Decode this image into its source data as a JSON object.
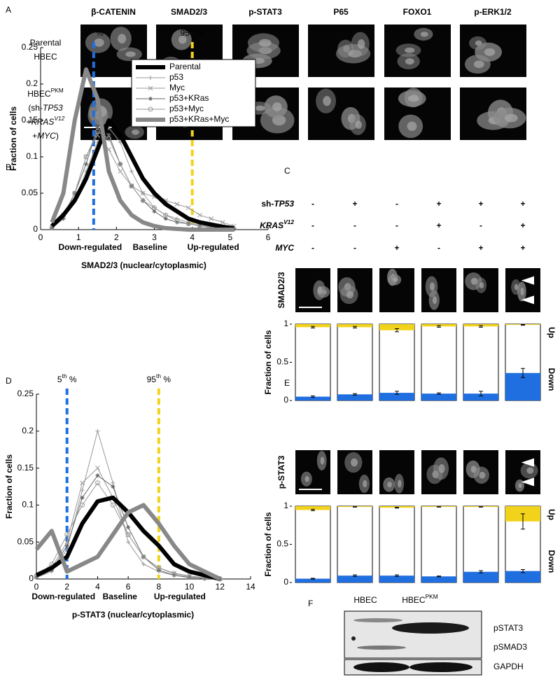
{
  "panel_labels": [
    "A",
    "B",
    "C",
    "D",
    "E",
    "F"
  ],
  "panel_a": {
    "columns": [
      "β-CATENIN",
      "SMAD2/3",
      "p-STAT3",
      "P65",
      "FOXO1",
      "p-ERK1/2"
    ],
    "row_labels": [
      [
        [
          {
            "t": "Parental"
          }
        ],
        [
          {
            "t": "HBEC"
          }
        ]
      ],
      [
        [
          {
            "t": "HBEC"
          },
          {
            "t": "PKM",
            "s": "sup"
          }
        ],
        [
          {
            "t": "(sh-"
          },
          {
            "t": "TP53",
            "s": "i"
          }
        ],
        [
          {
            "t": "+"
          },
          {
            "t": "KRAS",
            "s": "i"
          },
          {
            "t": "V12",
            "s": "isup"
          }
        ],
        [
          {
            "t": "+"
          },
          {
            "t": "MYC",
            "s": "i"
          },
          {
            "t": ")"
          }
        ]
      ]
    ]
  },
  "chart_data": [
    {
      "type": "line",
      "xlabel": "SMAD2/3 (nuclear/cytoplasmic)",
      "ylabel": "Fraction of cells",
      "xlim": [
        0,
        6
      ],
      "xticks": [
        0,
        1,
        2,
        3,
        4,
        5,
        6
      ],
      "ylim": [
        0,
        0.25
      ],
      "yticks": [
        0,
        0.05,
        0.1,
        0.15,
        0.2,
        0.25
      ],
      "legend": "upper right",
      "x": [
        0.3,
        0.6,
        0.9,
        1.2,
        1.5,
        1.8,
        2.1,
        2.4,
        2.7,
        3.0,
        3.3,
        3.6,
        3.9,
        4.2,
        4.5,
        4.8,
        5.1
      ],
      "series": [
        {
          "name": "Parental",
          "color": "#000000",
          "style": "thick",
          "values": [
            0.005,
            0.02,
            0.04,
            0.07,
            0.11,
            0.15,
            0.13,
            0.1,
            0.07,
            0.05,
            0.035,
            0.025,
            0.015,
            0.01,
            0.007,
            0.004,
            0.002
          ]
        },
        {
          "name": "p53",
          "color": "#999999",
          "style": "thin",
          "marker": "+",
          "values": [
            0.003,
            0.015,
            0.04,
            0.08,
            0.12,
            0.14,
            0.12,
            0.08,
            0.05,
            0.03,
            0.02,
            0.015,
            0.01,
            0.006,
            0.004,
            0.002,
            0.001
          ]
        },
        {
          "name": "Myc",
          "color": "#999999",
          "style": "thin",
          "marker": "x",
          "values": [
            0.004,
            0.02,
            0.05,
            0.1,
            0.13,
            0.11,
            0.08,
            0.06,
            0.05,
            0.045,
            0.04,
            0.035,
            0.03,
            0.02,
            0.015,
            0.01,
            0.005
          ]
        },
        {
          "name": "p53+KRas",
          "color": "#666666",
          "style": "thin",
          "marker": "*",
          "values": [
            0.002,
            0.015,
            0.05,
            0.09,
            0.14,
            0.13,
            0.09,
            0.06,
            0.04,
            0.025,
            0.015,
            0.01,
            0.008,
            0.005,
            0.003,
            0.002,
            0.001
          ]
        },
        {
          "name": "p53+Myc",
          "color": "#999999",
          "style": "thin",
          "marker": "o",
          "values": [
            0.003,
            0.02,
            0.05,
            0.1,
            0.135,
            0.125,
            0.09,
            0.06,
            0.04,
            0.03,
            0.02,
            0.012,
            0.008,
            0.005,
            0.003,
            0.002,
            0.001
          ]
        },
        {
          "name": "p53+KRas+Myc",
          "color": "#888888",
          "style": "thick",
          "values": [
            0.01,
            0.05,
            0.15,
            0.22,
            0.18,
            0.08,
            0.04,
            0.02,
            0.01,
            0.005,
            0.002,
            0.001,
            0,
            0,
            0,
            0,
            0
          ]
        }
      ],
      "thresholds": [
        {
          "value": 1.4,
          "color": "#1f6fe0",
          "label": [
            {
              "t": "5"
            },
            {
              "t": "th",
              "s": "sup"
            },
            {
              "t": " %"
            }
          ]
        },
        {
          "value": 4,
          "color": "#f2d31b",
          "label": [
            {
              "t": "95"
            },
            {
              "t": "th",
              "s": "sup"
            },
            {
              "t": " %"
            }
          ]
        }
      ],
      "regions": [
        {
          "label": "Down-regulated",
          "color": "#1f6fe0"
        },
        {
          "label": "Baseline",
          "color": "#000000"
        },
        {
          "label": "Up-regulated",
          "color": "#f2d31b"
        }
      ]
    },
    {
      "type": "stacked_bar",
      "ylabel": "Fraction of cells",
      "image_label": "SMAD2/3",
      "ylim": [
        0,
        1
      ],
      "yticks": [
        0,
        0.5,
        1
      ],
      "conditions": {
        "rows": [
          [
            {
              "t": "sh-"
            },
            {
              "t": "TP53",
              "s": "i"
            }
          ],
          [
            {
              "t": "KRAS",
              "s": "i"
            },
            {
              "t": "V12",
              "s": "isup"
            }
          ],
          [
            {
              "t": "MYC",
              "s": "i"
            }
          ]
        ],
        "signs": [
          [
            "-",
            "+",
            "-",
            "+",
            "+",
            "+"
          ],
          [
            "-",
            "-",
            "-",
            "+",
            "-",
            "+"
          ],
          [
            "-",
            "-",
            "+",
            "-",
            "+",
            "+"
          ]
        ]
      },
      "series": [
        {
          "name": "Down",
          "color": "#1f6fe0",
          "values": [
            0.05,
            0.08,
            0.1,
            0.09,
            0.09,
            0.36
          ],
          "errors": [
            0.01,
            0.01,
            0.02,
            0.01,
            0.03,
            0.06
          ]
        },
        {
          "name": "Up",
          "color": "#f2d31b",
          "stack": "top",
          "values": [
            0.04,
            0.04,
            0.08,
            0.03,
            0.03,
            0.01
          ],
          "errors": [
            0.01,
            0.01,
            0.02,
            0.01,
            0.01,
            0.005
          ]
        }
      ]
    },
    {
      "type": "line",
      "xlabel": "p-STAT3 (nuclear/cytoplasmic)",
      "ylabel": "Fraction of cells",
      "xlim": [
        0,
        14
      ],
      "xticks": [
        0,
        2,
        4,
        6,
        8,
        10,
        12,
        14
      ],
      "ylim": [
        0,
        0.25
      ],
      "yticks": [
        0,
        0.05,
        0.1,
        0.15,
        0.2,
        0.25
      ],
      "x": [
        0,
        1,
        2,
        3,
        4,
        5,
        6,
        7,
        8,
        9,
        10,
        11,
        12
      ],
      "series": [
        {
          "color": "#000000",
          "style": "thick",
          "values": [
            0.005,
            0.015,
            0.03,
            0.075,
            0.105,
            0.11,
            0.09,
            0.065,
            0.045,
            0.02,
            0.01,
            0.005,
            0
          ]
        },
        {
          "color": "#999999",
          "style": "thin",
          "marker": "+",
          "values": [
            0.002,
            0.01,
            0.04,
            0.12,
            0.2,
            0.13,
            0.05,
            0.02,
            0.01,
            0.005,
            0.002,
            0.001,
            0
          ]
        },
        {
          "color": "#999999",
          "style": "thin",
          "marker": "x",
          "values": [
            0.003,
            0.015,
            0.05,
            0.13,
            0.15,
            0.11,
            0.06,
            0.03,
            0.015,
            0.008,
            0.004,
            0.002,
            0
          ]
        },
        {
          "color": "#666666",
          "style": "thin",
          "marker": "*",
          "values": [
            0.002,
            0.012,
            0.045,
            0.11,
            0.14,
            0.125,
            0.07,
            0.03,
            0.012,
            0.005,
            0.002,
            0.001,
            0
          ]
        },
        {
          "color": "#999999",
          "style": "thin",
          "marker": "o",
          "values": [
            0.004,
            0.02,
            0.06,
            0.1,
            0.13,
            0.1,
            0.06,
            0.03,
            0.015,
            0.007,
            0.003,
            0.001,
            0
          ]
        },
        {
          "color": "#888888",
          "style": "thick",
          "values": [
            0.04,
            0.065,
            0.01,
            0.02,
            0.03,
            0.06,
            0.09,
            0.1,
            0.075,
            0.045,
            0.02,
            0.01,
            0
          ]
        }
      ],
      "thresholds": [
        {
          "value": 2,
          "color": "#1f6fe0",
          "label": [
            {
              "t": "5"
            },
            {
              "t": "th",
              "s": "sup"
            },
            {
              "t": " %"
            }
          ]
        },
        {
          "value": 8,
          "color": "#f2d31b",
          "label": [
            {
              "t": "95"
            },
            {
              "t": "th",
              "s": "sup"
            },
            {
              "t": " %"
            }
          ]
        }
      ],
      "regions": [
        {
          "label": "Down-regulated",
          "color": "#1f6fe0"
        },
        {
          "label": "Baseline",
          "color": "#000000"
        },
        {
          "label": "Up-regulated",
          "color": "#f2d31b"
        }
      ]
    },
    {
      "type": "stacked_bar",
      "ylabel": "Fraction of cells",
      "image_label": "p-STAT3",
      "ylim": [
        0,
        1
      ],
      "yticks": [
        0,
        0.5,
        1
      ],
      "series": [
        {
          "name": "Down",
          "color": "#1f6fe0",
          "values": [
            0.05,
            0.09,
            0.09,
            0.08,
            0.14,
            0.15
          ],
          "errors": [
            0.005,
            0.01,
            0.01,
            0.005,
            0.015,
            0.02
          ]
        },
        {
          "name": "Up",
          "color": "#f2d31b",
          "stack": "top",
          "values": [
            0.05,
            0.01,
            0.02,
            0.01,
            0.01,
            0.2
          ],
          "errors": [
            0.01,
            0.003,
            0.005,
            0.003,
            0.003,
            0.1
          ]
        }
      ]
    }
  ],
  "panel_f": {
    "lanes": [
      [
        {
          "t": "HBEC"
        }
      ],
      [
        {
          "t": "HBEC"
        },
        {
          "t": "PKM",
          "s": "sup"
        }
      ]
    ],
    "bands": [
      "pSTAT3",
      "pSMAD3",
      "GAPDH"
    ]
  }
}
